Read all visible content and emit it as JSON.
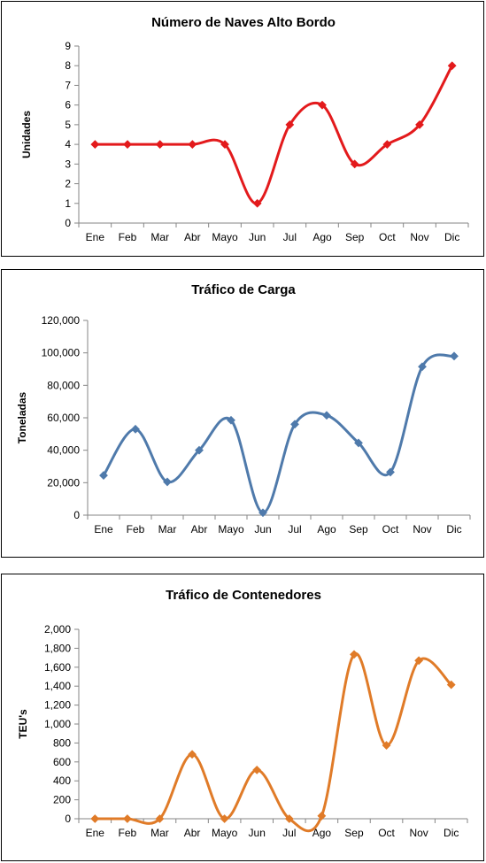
{
  "chart_data": [
    {
      "type": "line",
      "title": "Número de Naves Alto Bordo",
      "xlabel": "",
      "ylabel": "Unidades",
      "categories": [
        "Ene",
        "Feb",
        "Mar",
        "Abr",
        "Mayo",
        "Jun",
        "Jul",
        "Ago",
        "Sep",
        "Oct",
        "Nov",
        "Dic"
      ],
      "values": [
        4,
        4,
        4,
        4,
        4,
        1,
        5,
        6,
        3,
        4,
        5,
        8
      ],
      "ylim": [
        0,
        9
      ],
      "yticks": [
        0,
        1,
        2,
        3,
        4,
        5,
        6,
        7,
        8,
        9
      ],
      "ytick_labels": [
        "0",
        "1",
        "2",
        "3",
        "4",
        "5",
        "6",
        "7",
        "8",
        "9"
      ],
      "color": "#E31A1C",
      "marker": "diamond",
      "smooth": true,
      "grid": false,
      "legend": "none"
    },
    {
      "type": "line",
      "title": "Tráfico de Carga",
      "xlabel": "",
      "ylabel": "Toneladas",
      "categories": [
        "Ene",
        "Feb",
        "Mar",
        "Abr",
        "Mayo",
        "Jun",
        "Jul",
        "Ago",
        "Sep",
        "Oct",
        "Nov",
        "Dic"
      ],
      "values": [
        24500,
        53000,
        20500,
        40000,
        58500,
        1500,
        56000,
        61500,
        44500,
        26500,
        91500,
        98000
      ],
      "ylim": [
        0,
        120000
      ],
      "yticks": [
        0,
        20000,
        40000,
        60000,
        80000,
        100000,
        120000
      ],
      "ytick_labels": [
        "0",
        "20,000",
        "40,000",
        "60,000",
        "80,000",
        "100,000",
        "120,000"
      ],
      "color": "#4F7AAB",
      "marker": "diamond",
      "smooth": true,
      "grid": false,
      "legend": "none"
    },
    {
      "type": "line",
      "title": "Tráfico de Contenedores",
      "xlabel": "",
      "ylabel": "TEU's",
      "categories": [
        "Ene",
        "Feb",
        "Mar",
        "Abr",
        "Mayo",
        "Jun",
        "Jul",
        "Ago",
        "Sep",
        "Oct",
        "Nov",
        "Dic"
      ],
      "values": [
        0,
        0,
        0,
        680,
        0,
        515,
        0,
        30,
        1735,
        775,
        1670,
        1415
      ],
      "ylim": [
        0,
        2000
      ],
      "yticks": [
        0,
        200,
        400,
        600,
        800,
        1000,
        1200,
        1400,
        1600,
        1800,
        2000
      ],
      "ytick_labels": [
        "0",
        "200",
        "400",
        "600",
        "800",
        "1,000",
        "1,200",
        "1,400",
        "1,600",
        "1,800",
        "2,000"
      ],
      "color": "#E07B28",
      "marker": "diamond",
      "smooth": true,
      "grid": false,
      "legend": "none"
    }
  ]
}
